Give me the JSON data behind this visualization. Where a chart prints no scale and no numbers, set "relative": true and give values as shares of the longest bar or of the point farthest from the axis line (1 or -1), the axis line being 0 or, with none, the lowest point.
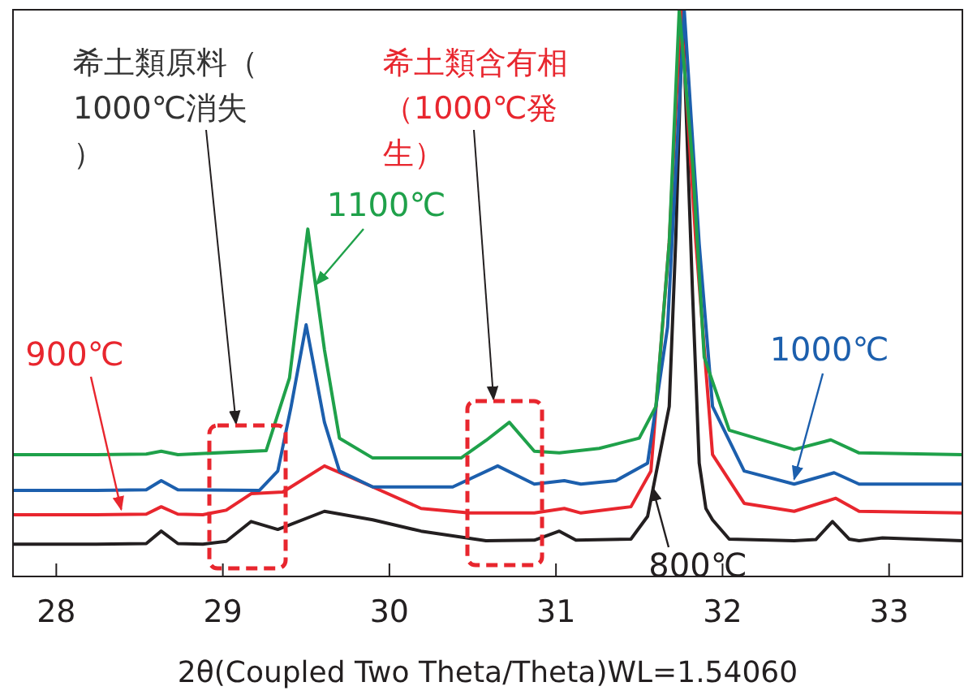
{
  "chart_data": {
    "type": "line",
    "relative": true,
    "xlabel": "2θ(Coupled Two Theta/Theta)WL=1.54060",
    "xlim": [
      27.74,
      33.44
    ],
    "xticks": [
      28,
      29,
      30,
      31,
      32,
      33
    ],
    "grid": false,
    "marker": "none",
    "line_style": "solid",
    "series": [
      {
        "name": "800℃",
        "color": "#231f20",
        "x": [
          27.74,
          28.24,
          28.54,
          28.63,
          28.73,
          28.88,
          29.02,
          29.17,
          29.33,
          29.61,
          29.9,
          30.19,
          30.58,
          30.87,
          31.02,
          31.12,
          31.45,
          31.55,
          31.68,
          31.72,
          31.76,
          31.82,
          31.86,
          31.9,
          31.94,
          32.04,
          32.43,
          32.56,
          32.66,
          32.76,
          32.82,
          32.96,
          33.44
        ],
        "values": [
          0.057,
          0.057,
          0.058,
          0.08,
          0.058,
          0.057,
          0.062,
          0.097,
          0.083,
          0.115,
          0.1,
          0.08,
          0.063,
          0.064,
          0.08,
          0.064,
          0.066,
          0.106,
          0.3,
          0.6,
          1,
          0.5,
          0.2,
          0.12,
          0.1,
          0.066,
          0.063,
          0.065,
          0.097,
          0.066,
          0.063,
          0.068,
          0.063
        ]
      },
      {
        "name": "900℃",
        "color": "#e8262e",
        "x": [
          27.74,
          28.24,
          28.54,
          28.63,
          28.73,
          28.88,
          29.02,
          29.17,
          29.36,
          29.61,
          29.9,
          30.19,
          30.48,
          30.87,
          31.05,
          31.15,
          31.45,
          31.57,
          31.68,
          31.75,
          31.84,
          31.94,
          32.13,
          32.43,
          32.68,
          32.82,
          33.44
        ],
        "values": [
          0.109,
          0.109,
          0.11,
          0.123,
          0.11,
          0.109,
          0.117,
          0.146,
          0.149,
          0.195,
          0.158,
          0.12,
          0.112,
          0.112,
          0.12,
          0.112,
          0.123,
          0.186,
          0.59,
          1,
          0.59,
          0.215,
          0.129,
          0.115,
          0.138,
          0.115,
          0.112
        ]
      },
      {
        "name": "1000℃",
        "color": "#1c5fad",
        "x": [
          27.74,
          28.24,
          28.54,
          28.63,
          28.73,
          29.22,
          29.33,
          29.41,
          29.5,
          29.61,
          29.7,
          29.9,
          30.38,
          30.65,
          30.87,
          31.05,
          31.15,
          31.36,
          31.55,
          31.67,
          31.77,
          31.86,
          31.94,
          32.13,
          32.43,
          32.67,
          32.82,
          33.44
        ],
        "values": [
          0.152,
          0.152,
          0.153,
          0.169,
          0.153,
          0.152,
          0.186,
          0.3,
          0.444,
          0.272,
          0.186,
          0.158,
          0.158,
          0.195,
          0.163,
          0.169,
          0.163,
          0.169,
          0.2,
          0.44,
          1,
          0.587,
          0.3,
          0.186,
          0.163,
          0.183,
          0.163,
          0.163
        ]
      },
      {
        "name": "1100℃",
        "color": "#1fa14a",
        "x": [
          27.74,
          28.24,
          28.54,
          28.63,
          28.73,
          29.26,
          29.4,
          29.51,
          29.61,
          29.7,
          29.9,
          30.43,
          30.58,
          30.72,
          30.87,
          31.02,
          31.26,
          31.5,
          31.6,
          31.68,
          31.74,
          31.82,
          31.89,
          32.04,
          32.43,
          32.65,
          32.82,
          33.44
        ],
        "values": [
          0.215,
          0.215,
          0.216,
          0.221,
          0.215,
          0.222,
          0.35,
          0.613,
          0.4,
          0.244,
          0.209,
          0.209,
          0.24,
          0.272,
          0.221,
          0.218,
          0.226,
          0.244,
          0.3,
          0.59,
          1,
          0.73,
          0.387,
          0.258,
          0.224,
          0.241,
          0.218,
          0.215
        ]
      }
    ],
    "annotations": [
      "希土類原料（1000℃消失）",
      "希土類含有相（1000℃発生）"
    ]
  }
}
